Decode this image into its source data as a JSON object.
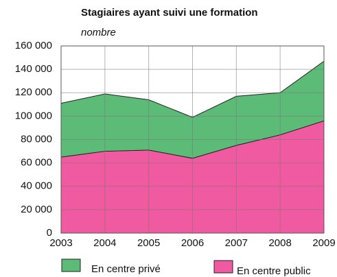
{
  "chart_data": {
    "type": "stacked-area",
    "title": "Stagiaires ayant suivi une formation",
    "subtitle": "nombre",
    "categories": [
      "2003",
      "2004",
      "2005",
      "2006",
      "2007",
      "2008",
      "2009"
    ],
    "series": [
      {
        "name": "En centre privé",
        "color": "#5dbb78",
        "values": [
          46000,
          49000,
          43000,
          35000,
          42000,
          36000,
          51000
        ]
      },
      {
        "name": "En centre public",
        "color": "#ef5aa0",
        "values": [
          65000,
          70000,
          71000,
          64000,
          75000,
          84000,
          96000
        ]
      }
    ],
    "ylim": [
      0,
      160000
    ],
    "yticks": [
      0,
      {
        "value": 20000,
        "label": "20 000"
      },
      {
        "value": 40000,
        "label": "40 000"
      },
      {
        "value": 60000,
        "label": "60 000"
      },
      {
        "value": 80000,
        "label": "80 000"
      },
      {
        "value": 100000,
        "label": "100 000"
      },
      {
        "value": 120000,
        "label": "120 000"
      },
      {
        "value": 140000,
        "label": "140 000"
      },
      {
        "value": 160000,
        "label": "160 000"
      }
    ],
    "grid": true,
    "legend": "bottom"
  }
}
